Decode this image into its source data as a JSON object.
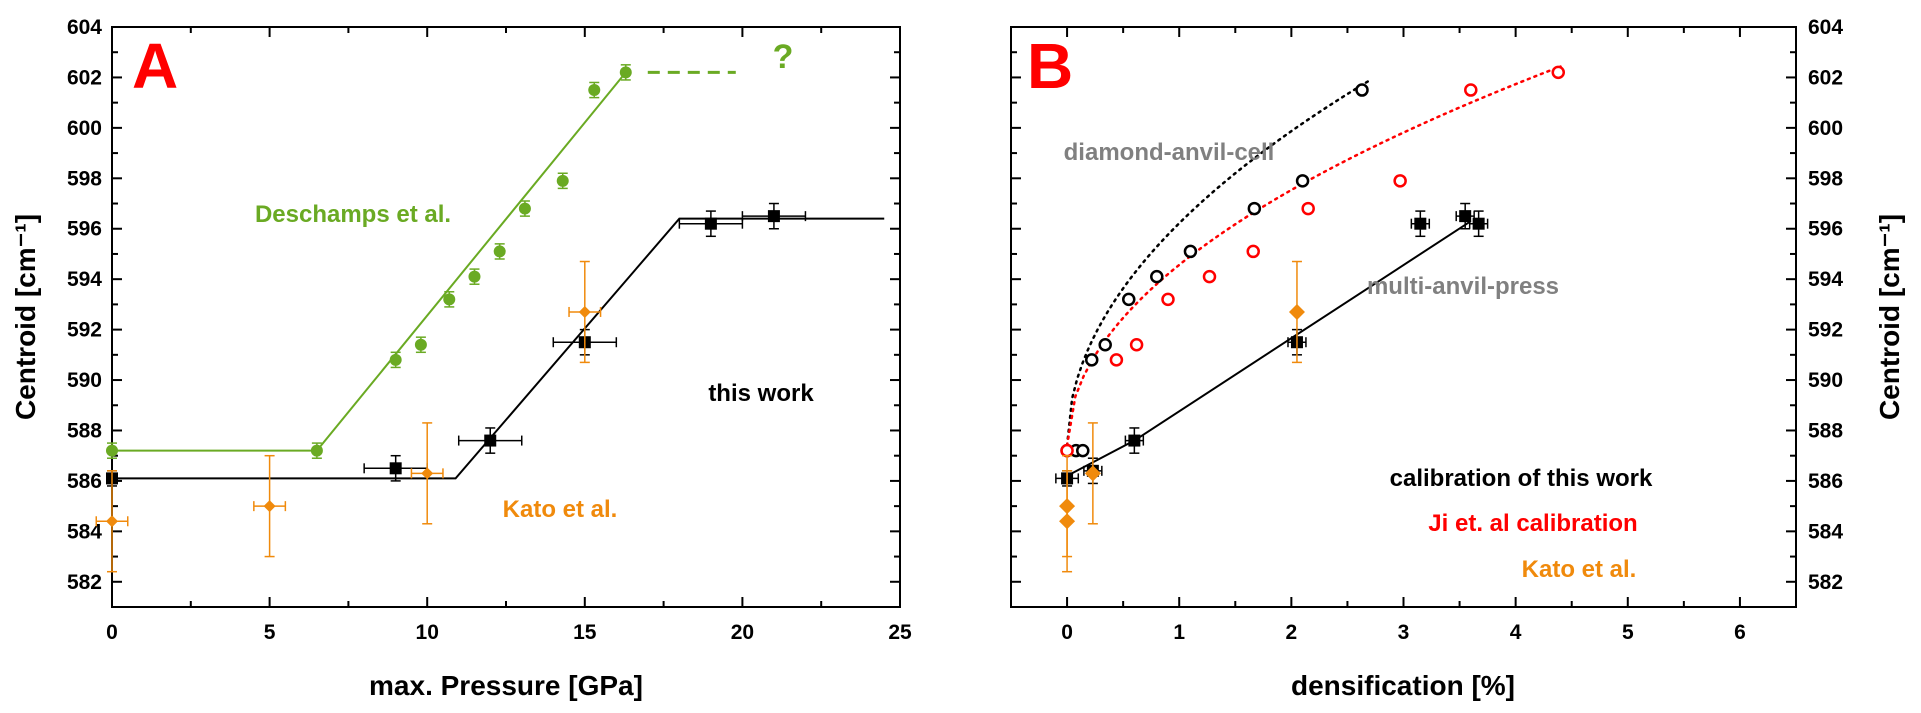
{
  "colors": {
    "green": "#6aaa23",
    "orange": "#f08a0c",
    "black": "#000000",
    "red": "#ff0000",
    "gray": "#808080"
  },
  "chart_data": [
    {
      "type": "scatter",
      "panel_label": "A",
      "xlabel": "max. Pressure [GPa]",
      "ylabel": "Centroid [cm⁻¹]",
      "xlim": [
        0,
        25
      ],
      "ylim": [
        581,
        604
      ],
      "xticks": [
        0,
        5,
        10,
        15,
        20,
        25
      ],
      "yticks": [
        582,
        584,
        586,
        588,
        590,
        592,
        594,
        596,
        598,
        600,
        602,
        604
      ],
      "series": [
        {
          "name": "Deschamps et al.",
          "color": "#6aaa23",
          "marker": "circle",
          "points": [
            {
              "x": 0,
              "y": 587.2,
              "yerr": 0.3
            },
            {
              "x": 6.5,
              "y": 587.2,
              "yerr": 0.3
            },
            {
              "x": 9,
              "y": 590.8,
              "yerr": 0.3
            },
            {
              "x": 9.8,
              "y": 591.4,
              "yerr": 0.3
            },
            {
              "x": 10.7,
              "y": 593.2,
              "yerr": 0.3
            },
            {
              "x": 11.5,
              "y": 594.1,
              "yerr": 0.3
            },
            {
              "x": 12.3,
              "y": 595.1,
              "yerr": 0.3
            },
            {
              "x": 13.1,
              "y": 596.8,
              "yerr": 0.3
            },
            {
              "x": 14.3,
              "y": 597.9,
              "yerr": 0.3
            },
            {
              "x": 15.3,
              "y": 601.5,
              "yerr": 0.3
            },
            {
              "x": 16.3,
              "y": 602.2,
              "yerr": 0.3
            }
          ],
          "fit_line": [
            [
              0,
              587.2
            ],
            [
              6.5,
              587.2
            ],
            [
              16.3,
              602.2
            ]
          ],
          "extension_label": "?"
        },
        {
          "name": "this work",
          "color": "#000000",
          "marker": "square",
          "points": [
            {
              "x": 0,
              "y": 586.1,
              "yerr": 0.3,
              "xerr": 0
            },
            {
              "x": 9,
              "y": 586.5,
              "yerr": 0.5,
              "xerr": 1
            },
            {
              "x": 12,
              "y": 587.6,
              "yerr": 0.5,
              "xerr": 1
            },
            {
              "x": 15,
              "y": 591.5,
              "yerr": 0.5,
              "xerr": 1
            },
            {
              "x": 19,
              "y": 596.2,
              "yerr": 0.5,
              "xerr": 1
            },
            {
              "x": 21,
              "y": 596.5,
              "yerr": 0.5,
              "xerr": 1
            }
          ],
          "fit_line": [
            [
              0,
              586.1
            ],
            [
              10.9,
              586.1
            ],
            [
              18,
              596.4
            ],
            [
              24.5,
              596.4
            ]
          ]
        },
        {
          "name": "Kato et al.",
          "color": "#f08a0c",
          "marker": "diamond",
          "points": [
            {
              "x": 0,
              "y": 584.4,
              "yerr": 2.0,
              "xerr": 0.5
            },
            {
              "x": 5,
              "y": 585.0,
              "yerr": 2.0,
              "xerr": 0.5
            },
            {
              "x": 10,
              "y": 586.3,
              "yerr": 2.0,
              "xerr": 0.5
            },
            {
              "x": 15,
              "y": 592.7,
              "yerr": 2.0,
              "xerr": 0.5
            }
          ]
        }
      ],
      "annotations": [
        "Deschamps et al.",
        "this work",
        "Kato et al."
      ]
    },
    {
      "type": "scatter",
      "panel_label": "B",
      "xlabel": "densification [%]",
      "ylabel": "Centroid [cm⁻¹]",
      "xlim": [
        -0.5,
        6.5
      ],
      "ylim": [
        581,
        604
      ],
      "xticks": [
        0,
        1,
        2,
        3,
        4,
        5,
        6
      ],
      "yticks": [
        582,
        584,
        586,
        588,
        590,
        592,
        594,
        596,
        598,
        600,
        602,
        604
      ],
      "series": [
        {
          "name": "diamond-anvil-cell",
          "color": "#000000",
          "marker": "open-circle",
          "points": [
            {
              "x": 0,
              "y": 587.2
            },
            {
              "x": 0.08,
              "y": 587.2
            },
            {
              "x": 0.14,
              "y": 587.2
            },
            {
              "x": 0.22,
              "y": 590.8
            },
            {
              "x": 0.34,
              "y": 591.4
            },
            {
              "x": 0.55,
              "y": 593.2
            },
            {
              "x": 0.8,
              "y": 594.1
            },
            {
              "x": 1.1,
              "y": 595.1
            },
            {
              "x": 1.67,
              "y": 596.8
            },
            {
              "x": 2.1,
              "y": 597.9
            },
            {
              "x": 2.63,
              "y": 601.5
            }
          ],
          "fit_curve": "dotted",
          "fit_range": [
            0,
            2.7
          ]
        },
        {
          "name": "Ji et. al calibration",
          "color": "#ff0000",
          "marker": "open-circle",
          "points": [
            {
              "x": 0,
              "y": 587.2
            },
            {
              "x": 0.44,
              "y": 590.8
            },
            {
              "x": 0.62,
              "y": 591.4
            },
            {
              "x": 0.9,
              "y": 593.2
            },
            {
              "x": 1.27,
              "y": 594.1
            },
            {
              "x": 1.66,
              "y": 595.1
            },
            {
              "x": 2.15,
              "y": 596.8
            },
            {
              "x": 2.97,
              "y": 597.9
            },
            {
              "x": 3.6,
              "y": 601.5
            },
            {
              "x": 4.38,
              "y": 602.2
            }
          ],
          "fit_curve": "dotted",
          "fit_range": [
            0,
            4.4
          ]
        },
        {
          "name": "calibration of this work",
          "color": "#000000",
          "marker": "square",
          "points": [
            {
              "x": 0,
              "y": 586.1,
              "xerr": 0.1,
              "yerr": 0.3
            },
            {
              "x": 0.23,
              "y": 586.4,
              "xerr": 0.08,
              "yerr": 0.5
            },
            {
              "x": 0.6,
              "y": 587.6,
              "xerr": 0.08,
              "yerr": 0.5
            },
            {
              "x": 2.05,
              "y": 591.5,
              "xerr": 0.08,
              "yerr": 0.5
            },
            {
              "x": 3.15,
              "y": 596.2,
              "xerr": 0.08,
              "yerr": 0.5
            },
            {
              "x": 3.55,
              "y": 596.5,
              "xerr": 0.08,
              "yerr": 0.5
            },
            {
              "x": 3.67,
              "y": 596.2,
              "xerr": 0.08,
              "yerr": 0.5
            }
          ],
          "fit_line": [
            [
              0,
              586.2
            ],
            [
              0.6,
              587.6
            ],
            [
              3.6,
              596.3
            ]
          ]
        },
        {
          "name": "Kato et al.",
          "color": "#f08a0c",
          "marker": "diamond",
          "points": [
            {
              "x": 0,
              "y": 584.4,
              "yerr": 2.0
            },
            {
              "x": 0,
              "y": 585.0,
              "yerr": 2.0
            },
            {
              "x": 0.23,
              "y": 586.3,
              "yerr": 2.0
            },
            {
              "x": 2.05,
              "y": 592.7,
              "yerr": 2.0
            }
          ]
        }
      ],
      "annotations": [
        "diamond-anvil-cell",
        "multi-anvil-press"
      ],
      "legend": [
        "calibration of this work",
        "Ji et. al calibration",
        "Kato et al."
      ]
    }
  ]
}
